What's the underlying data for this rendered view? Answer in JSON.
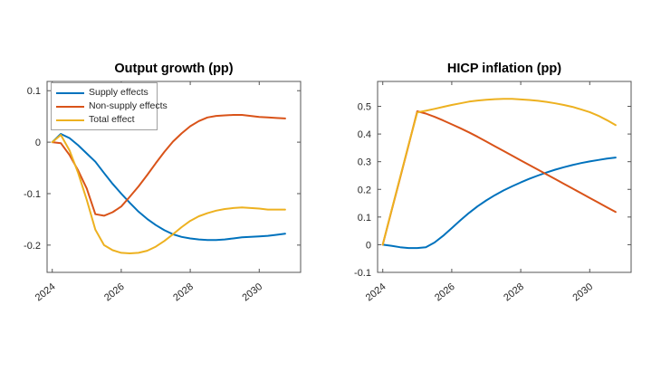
{
  "figure": {
    "background": "#ffffff"
  },
  "colors": {
    "blue": "#0072BD",
    "orange": "#D95319",
    "yellow": "#EDB120",
    "axis": "#555555",
    "text": "#262626",
    "title": "#000000"
  },
  "chart_data": [
    {
      "type": "line",
      "title": "Output growth (pp)",
      "xlabel": "",
      "ylabel": "",
      "grid": false,
      "legend_position": "northwest",
      "legend_visible": true,
      "xlim": [
        2023.85,
        2031.2
      ],
      "ylim": [
        -0.253,
        0.118
      ],
      "xticks": [
        2024,
        2026,
        2028,
        2030
      ],
      "xtick_labels": [
        "2024",
        "2026",
        "2028",
        "2030"
      ],
      "yticks": [
        0.1,
        0,
        -0.1,
        -0.2
      ],
      "ytick_labels": [
        "0.1",
        "0",
        "-0.1",
        "-0.2"
      ],
      "x": [
        2024,
        2024.25,
        2024.5,
        2024.75,
        2025,
        2025.25,
        2025.5,
        2025.75,
        2026,
        2026.25,
        2026.5,
        2026.75,
        2027,
        2027.25,
        2027.5,
        2027.75,
        2028,
        2028.25,
        2028.5,
        2028.75,
        2029,
        2029.25,
        2029.5,
        2029.75,
        2030,
        2030.25,
        2030.5,
        2030.75
      ],
      "series": [
        {
          "name": "Supply effects",
          "color_key": "blue",
          "values": [
            0,
            0.016,
            0.008,
            -0.006,
            -0.022,
            -0.038,
            -0.06,
            -0.081,
            -0.1,
            -0.118,
            -0.135,
            -0.149,
            -0.161,
            -0.171,
            -0.179,
            -0.184,
            -0.187,
            -0.189,
            -0.19,
            -0.19,
            -0.189,
            -0.187,
            -0.185,
            -0.184,
            -0.183,
            -0.182,
            -0.18,
            -0.178
          ]
        },
        {
          "name": "Non-supply effects",
          "color_key": "orange",
          "values": [
            0,
            -0.002,
            -0.025,
            -0.055,
            -0.09,
            -0.14,
            -0.143,
            -0.136,
            -0.125,
            -0.106,
            -0.086,
            -0.064,
            -0.041,
            -0.019,
            0.001,
            0.017,
            0.031,
            0.041,
            0.048,
            0.051,
            0.052,
            0.053,
            0.053,
            0.051,
            0.049,
            0.048,
            0.047,
            0.046
          ]
        },
        {
          "name": "Total effect",
          "color_key": "yellow",
          "values": [
            0,
            0.014,
            -0.016,
            -0.06,
            -0.112,
            -0.17,
            -0.2,
            -0.21,
            -0.215,
            -0.216,
            -0.215,
            -0.211,
            -0.203,
            -0.192,
            -0.179,
            -0.165,
            -0.153,
            -0.144,
            -0.138,
            -0.133,
            -0.13,
            -0.128,
            -0.127,
            -0.128,
            -0.129,
            -0.131,
            -0.131,
            -0.131
          ]
        }
      ]
    },
    {
      "type": "line",
      "title": "HICP inflation (pp)",
      "xlabel": "",
      "ylabel": "",
      "grid": false,
      "legend_visible": false,
      "xlim": [
        2023.85,
        2031.2
      ],
      "ylim": [
        -0.1,
        0.59
      ],
      "xticks": [
        2024,
        2026,
        2028,
        2030
      ],
      "xtick_labels": [
        "2024",
        "2026",
        "2028",
        "2030"
      ],
      "yticks": [
        0.5,
        0.4,
        0.3,
        0.2,
        0.1,
        0,
        -0.1
      ],
      "ytick_labels": [
        "0.5",
        "0.4",
        "0.3",
        "0.2",
        "0.1",
        "0",
        "-0.1"
      ],
      "x": [
        2024,
        2024.25,
        2024.5,
        2024.75,
        2025,
        2025.25,
        2025.5,
        2025.75,
        2026,
        2026.25,
        2026.5,
        2026.75,
        2027,
        2027.25,
        2027.5,
        2027.75,
        2028,
        2028.25,
        2028.5,
        2028.75,
        2029,
        2029.25,
        2029.5,
        2029.75,
        2030,
        2030.25,
        2030.5,
        2030.75
      ],
      "series": [
        {
          "name": "Supply effects",
          "color_key": "blue",
          "values": [
            0,
            -0.004,
            -0.009,
            -0.012,
            -0.012,
            -0.009,
            0.008,
            0.032,
            0.06,
            0.088,
            0.115,
            0.139,
            0.16,
            0.179,
            0.196,
            0.211,
            0.225,
            0.238,
            0.25,
            0.261,
            0.271,
            0.28,
            0.288,
            0.295,
            0.301,
            0.306,
            0.311,
            0.315
          ]
        },
        {
          "name": "Non-supply effects",
          "color_key": "orange",
          "values": [
            0,
            0.12,
            0.24,
            0.36,
            0.482,
            0.474,
            0.462,
            0.449,
            0.435,
            0.421,
            0.406,
            0.39,
            0.373,
            0.356,
            0.339,
            0.322,
            0.305,
            0.288,
            0.271,
            0.254,
            0.237,
            0.22,
            0.203,
            0.186,
            0.169,
            0.152,
            0.135,
            0.118
          ]
        },
        {
          "name": "Total effect",
          "color_key": "yellow",
          "values": [
            0,
            0.121,
            0.242,
            0.362,
            0.478,
            0.484,
            0.491,
            0.498,
            0.505,
            0.511,
            0.517,
            0.521,
            0.524,
            0.526,
            0.527,
            0.527,
            0.525,
            0.523,
            0.52,
            0.516,
            0.511,
            0.505,
            0.498,
            0.489,
            0.479,
            0.466,
            0.45,
            0.432
          ]
        }
      ]
    }
  ]
}
